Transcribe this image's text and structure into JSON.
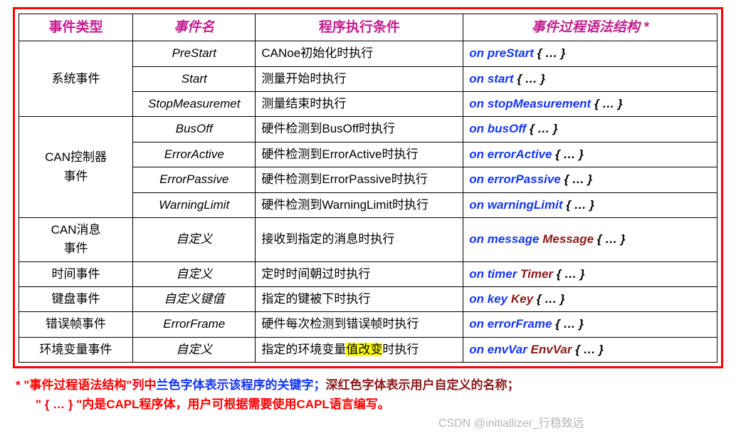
{
  "headers": [
    "事件类型",
    "事件名",
    "程序执行条件",
    "事件过程语法结构 *"
  ],
  "col_classes": [
    "col-type",
    "col-name",
    "col-cond",
    "col-syn"
  ],
  "rows": [
    {
      "type": "系统事件",
      "type_rowspan": 3,
      "name": "PreStart",
      "cond": "CANoe初始化时执行",
      "syn": [
        {
          "t": "on preStart",
          "c": "blue"
        },
        {
          "t": " { … }",
          "c": "blk"
        }
      ]
    },
    {
      "name": "Start",
      "cond": "测量开始时执行",
      "syn": [
        {
          "t": "on start",
          "c": "blue"
        },
        {
          "t": " { … }",
          "c": "blk"
        }
      ]
    },
    {
      "name": "StopMeasuremet",
      "cond": "测量结束时执行",
      "syn": [
        {
          "t": "on stopMeasurement",
          "c": "blue"
        },
        {
          "t": " { … }",
          "c": "blk"
        }
      ]
    },
    {
      "type": "CAN控制器事件",
      "type_rowspan": 4,
      "name": "BusOff",
      "cond": "硬件检测到BusOff时执行",
      "syn": [
        {
          "t": "on busOff",
          "c": "blue"
        },
        {
          "t": " { … }",
          "c": "blk"
        }
      ]
    },
    {
      "name": "ErrorActive",
      "cond": "硬件检测到ErrorActive时执行",
      "syn": [
        {
          "t": "on errorActive",
          "c": "blue"
        },
        {
          "t": " { … }",
          "c": "blk"
        }
      ]
    },
    {
      "name": "ErrorPassive",
      "cond": "硬件检测到ErrorPassive时执行",
      "syn": [
        {
          "t": "on errorPassive",
          "c": "blue"
        },
        {
          "t": " { … }",
          "c": "blk"
        }
      ]
    },
    {
      "name": "WarningLimit",
      "cond": "硬件检测到WarningLimit时执行",
      "syn": [
        {
          "t": "on warningLimit",
          "c": "blue"
        },
        {
          "t": " { … }",
          "c": "blk"
        }
      ]
    },
    {
      "type": "CAN消息事件",
      "type_rowspan": 1,
      "name": "自定义",
      "cond": "接收到指定的消息时执行",
      "syn": [
        {
          "t": "on message",
          "c": "blue"
        },
        {
          "t": " Message",
          "c": "dred"
        },
        {
          "t": " { … }",
          "c": "blk"
        }
      ]
    },
    {
      "type": "时间事件",
      "type_rowspan": 1,
      "name": "自定义",
      "cond": "定时时间朝过时执行",
      "syn": [
        {
          "t": "on timer",
          "c": "blue"
        },
        {
          "t": " Timer",
          "c": "dred"
        },
        {
          "t": " { … }",
          "c": "blk"
        }
      ]
    },
    {
      "type": "键盘事件",
      "type_rowspan": 1,
      "name": "自定义键值",
      "cond": "指定的键被下时执行",
      "syn": [
        {
          "t": "on key",
          "c": "blue"
        },
        {
          "t": " Key",
          "c": "dred"
        },
        {
          "t": " { … }",
          "c": "blk"
        }
      ]
    },
    {
      "type": "错误帧事件",
      "type_rowspan": 1,
      "name": "ErrorFrame",
      "cond": "硬件每次检测到错误帧时执行",
      "syn": [
        {
          "t": "on errorFrame",
          "c": "blue"
        },
        {
          "t": " { … }",
          "c": "blk"
        }
      ]
    },
    {
      "type": "环境变量事件",
      "type_rowspan": 1,
      "name": "自定义",
      "cond_parts": [
        {
          "t": "指定的环境变量"
        },
        {
          "t": "值改变",
          "hl": true
        },
        {
          "t": "时执行"
        }
      ],
      "syn": [
        {
          "t": "on envVar",
          "c": "blue"
        },
        {
          "t": " EnvVar",
          "c": "dred"
        },
        {
          "t": " { … }",
          "c": "blk"
        }
      ]
    }
  ],
  "footer": {
    "line1_pre": "*   \"事件过程语法结构\"列中",
    "line1_blue": "兰色字体表示该程序的关键字；",
    "line1_dred": "深红色字体表示用户自定义的名称；",
    "line2": "\" { … } \"内是CAPL程序体，用户可根据需要使用CAPL语言编写。"
  },
  "watermark": "CSDN @initiallizer_行稳致远"
}
